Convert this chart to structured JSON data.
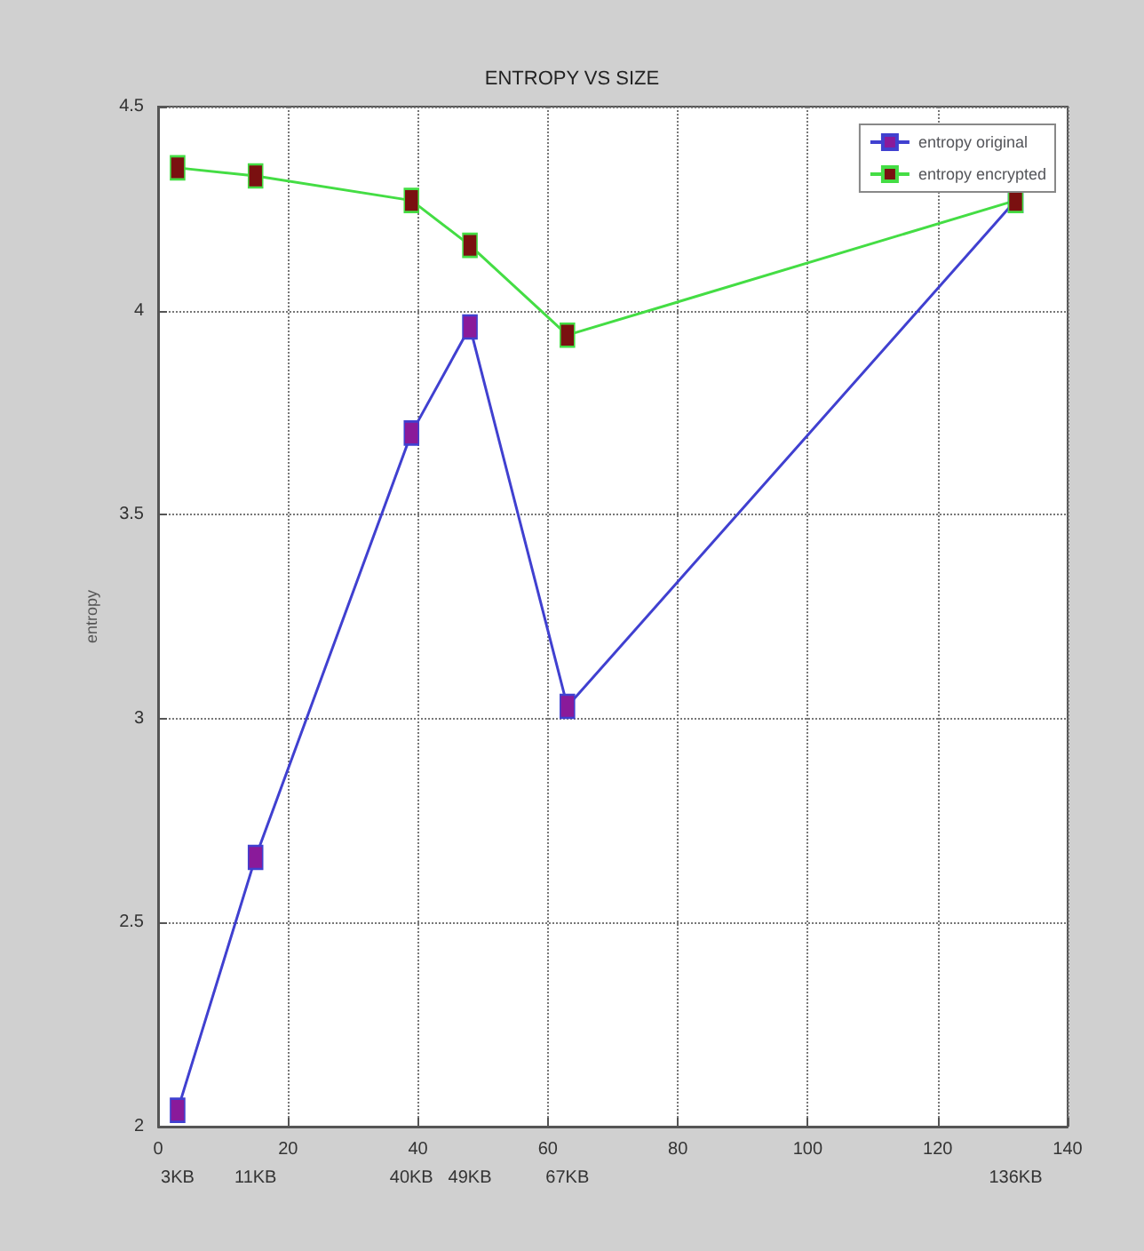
{
  "chart_data": {
    "type": "line",
    "title": "ENTROPY VS SIZE",
    "ylabel": "entropy",
    "x": [
      3,
      15,
      39,
      48,
      63,
      132
    ],
    "series": [
      {
        "name": "entropy original",
        "color": "#4040d0",
        "values": [
          2.04,
          2.66,
          3.7,
          3.96,
          3.03,
          4.27
        ]
      },
      {
        "name": "entropy encrypted",
        "color": "#44dd44",
        "values": [
          4.35,
          4.33,
          4.27,
          4.16,
          3.94,
          4.27
        ]
      }
    ],
    "xlim": [
      0,
      140
    ],
    "xticks": [
      0,
      20,
      40,
      60,
      80,
      100,
      120,
      140
    ],
    "ylim": [
      2,
      4.5
    ],
    "yticks": [
      2,
      2.5,
      3,
      3.5,
      4,
      4.5
    ],
    "annotations": [
      "3KB",
      "11KB",
      "40KB",
      "49KB",
      "67KB",
      "136KB"
    ],
    "grid": true,
    "legend": "top right",
    "marker": "square",
    "line_style": "solid"
  }
}
